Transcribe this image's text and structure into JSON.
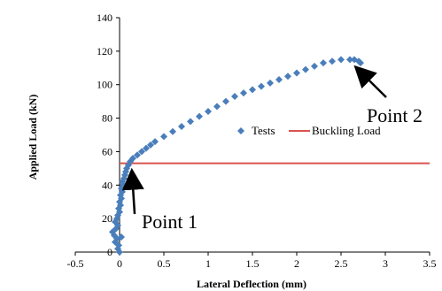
{
  "chart_data": {
    "type": "scatter",
    "xlabel": "Lateral Deflection (mm)",
    "ylabel": "Applied Load (kN)",
    "xlim": [
      -0.5,
      3.5
    ],
    "ylim": [
      0,
      140
    ],
    "x_ticks": [
      -0.5,
      0,
      0.5,
      1,
      1.5,
      2,
      2.5,
      3,
      3.5
    ],
    "y_ticks": [
      0,
      20,
      40,
      60,
      80,
      100,
      120,
      140
    ],
    "x_tick_labels": [
      "-0.5",
      "0",
      "0.5",
      "1",
      "1.5",
      "2",
      "2.5",
      "3",
      "3.5"
    ],
    "y_tick_labels": [
      "0",
      "20",
      "40",
      "60",
      "80",
      "100",
      "120",
      "140"
    ],
    "grid": false,
    "legend_position": "center-right",
    "series": [
      {
        "name": "Tests",
        "kind": "scatter",
        "marker": "diamond",
        "color": "#4a7ebb",
        "points": [
          [
            0.0,
            0.0
          ],
          [
            -0.02,
            2.0
          ],
          [
            -0.01,
            4.0
          ],
          [
            -0.05,
            6.0
          ],
          [
            -0.03,
            8.0
          ],
          [
            0.02,
            9.0
          ],
          [
            -0.06,
            10.0
          ],
          [
            -0.08,
            12.0
          ],
          [
            -0.04,
            14.0
          ],
          [
            -0.02,
            16.0
          ],
          [
            -0.05,
            18.0
          ],
          [
            -0.03,
            20.0
          ],
          [
            -0.02,
            22.0
          ],
          [
            0.0,
            24.0
          ],
          [
            -0.01,
            26.0
          ],
          [
            0.01,
            28.0
          ],
          [
            0.0,
            30.0
          ],
          [
            0.02,
            32.0
          ],
          [
            0.01,
            34.0
          ],
          [
            0.03,
            36.0
          ],
          [
            0.02,
            38.0
          ],
          [
            0.04,
            40.0
          ],
          [
            0.03,
            42.0
          ],
          [
            0.05,
            44.0
          ],
          [
            0.06,
            46.0
          ],
          [
            0.07,
            48.0
          ],
          [
            0.08,
            50.0
          ],
          [
            0.1,
            52.0
          ],
          [
            0.12,
            54.0
          ],
          [
            0.15,
            56.0
          ],
          [
            0.2,
            58.0
          ],
          [
            0.25,
            60.0
          ],
          [
            0.3,
            62.0
          ],
          [
            0.35,
            64.0
          ],
          [
            0.4,
            66.0
          ],
          [
            0.5,
            69.0
          ],
          [
            0.6,
            72.0
          ],
          [
            0.7,
            75.0
          ],
          [
            0.8,
            78.0
          ],
          [
            0.9,
            81.0
          ],
          [
            1.0,
            84.0
          ],
          [
            1.1,
            87.0
          ],
          [
            1.2,
            90.0
          ],
          [
            1.3,
            93.0
          ],
          [
            1.4,
            95.0
          ],
          [
            1.5,
            97.0
          ],
          [
            1.6,
            99.0
          ],
          [
            1.7,
            101.0
          ],
          [
            1.8,
            103.0
          ],
          [
            1.9,
            105.0
          ],
          [
            2.0,
            107.0
          ],
          [
            2.1,
            109.0
          ],
          [
            2.2,
            111.0
          ],
          [
            2.3,
            113.0
          ],
          [
            2.4,
            114.0
          ],
          [
            2.5,
            115.0
          ],
          [
            2.6,
            115.0
          ],
          [
            2.65,
            115.0
          ],
          [
            2.7,
            114.0
          ],
          [
            2.72,
            113.0
          ]
        ]
      },
      {
        "name": "Buckling Load",
        "kind": "line",
        "color": "#d9534f",
        "points": [
          [
            0.0,
            53.0
          ],
          [
            3.5,
            53.0
          ]
        ]
      }
    ],
    "annotations": [
      {
        "text": "Point 1",
        "x": 0.1,
        "y": 53.0
      },
      {
        "text": "Point 2",
        "x": 2.7,
        "y": 114.0
      }
    ]
  }
}
